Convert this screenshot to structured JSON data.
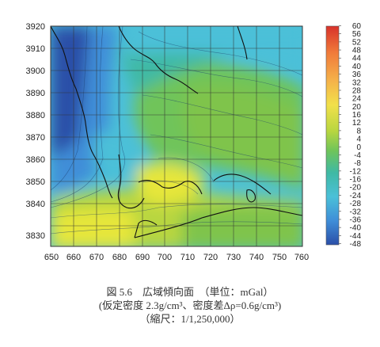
{
  "map": {
    "x_ticks": [
      "650",
      "660",
      "670",
      "680",
      "690",
      "700",
      "710",
      "720",
      "730",
      "740",
      "750",
      "760"
    ],
    "y_ticks": [
      "3920",
      "3910",
      "3900",
      "3890",
      "3880",
      "3870",
      "3860",
      "3850",
      "3840",
      "3830"
    ],
    "colorbar_labels": [
      "60",
      "56",
      "52",
      "48",
      "44",
      "40",
      "36",
      "32",
      "28",
      "24",
      "20",
      "16",
      "12",
      "8",
      "4",
      "0",
      "-4",
      "-8",
      "-12",
      "-16",
      "-20",
      "-24",
      "-28",
      "-32",
      "-36",
      "-40",
      "-44",
      "-48"
    ],
    "colors": {
      "deep_blue": "#2b4fa8",
      "mid_blue": "#3f8ed8",
      "cyan": "#4bc0d8",
      "teal": "#3fb9a4",
      "green": "#6fc45a",
      "yellow_green": "#b8d640",
      "yellow": "#e6e63a",
      "coast_line": "#111111"
    }
  },
  "caption": {
    "line1": "図 5.6　広域傾向面　（単位：mGal）",
    "line2": "(仮定密度 2.3g/cm³、密度差Δρ=0.6g/cm³)",
    "line3": "（縮尺：1/1,250,000）"
  }
}
